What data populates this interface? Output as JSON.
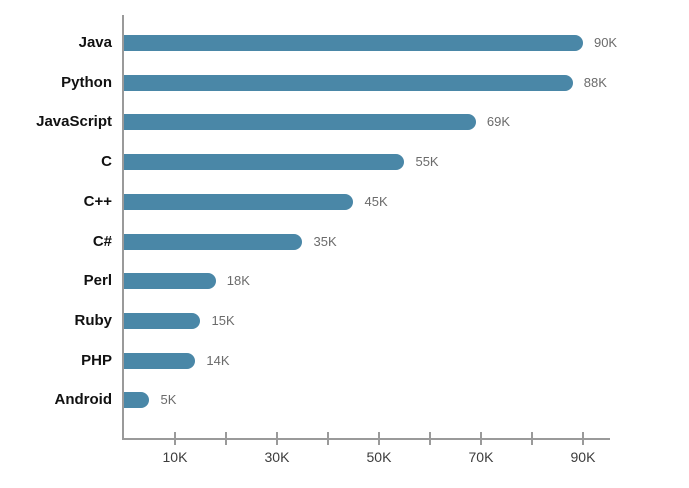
{
  "chart_data": {
    "type": "bar",
    "orientation": "horizontal",
    "title": "",
    "xlabel": "",
    "ylabel": "",
    "categories": [
      "Java",
      "Python",
      "JavaScript",
      "C",
      "C++",
      "C#",
      "Perl",
      "Ruby",
      "PHP",
      "Android"
    ],
    "values": [
      90000,
      88000,
      69000,
      55000,
      45000,
      35000,
      18000,
      15000,
      14000,
      5000
    ],
    "value_labels": [
      "90K",
      "88K",
      "69K",
      "55K",
      "45K",
      "35K",
      "18K",
      "15K",
      "14K",
      "5K"
    ],
    "xlim": [
      0,
      95300
    ],
    "x_ticks": [
      {
        "value": 10000,
        "label": "10K"
      },
      {
        "value": 20000,
        "label": ""
      },
      {
        "value": 30000,
        "label": "30K"
      },
      {
        "value": 40000,
        "label": ""
      },
      {
        "value": 50000,
        "label": "50K"
      },
      {
        "value": 60000,
        "label": ""
      },
      {
        "value": 70000,
        "label": "70K"
      },
      {
        "value": 80000,
        "label": ""
      },
      {
        "value": 90000,
        "label": "90K"
      }
    ],
    "grid": false,
    "legend": false,
    "colors": {
      "bar": "#4a87a7",
      "axis": "#9a9a9a",
      "category_label": "#111111",
      "value_label": "#6b6b6b",
      "tick_label": "#3c3c3c",
      "background": "#ffffff"
    }
  }
}
